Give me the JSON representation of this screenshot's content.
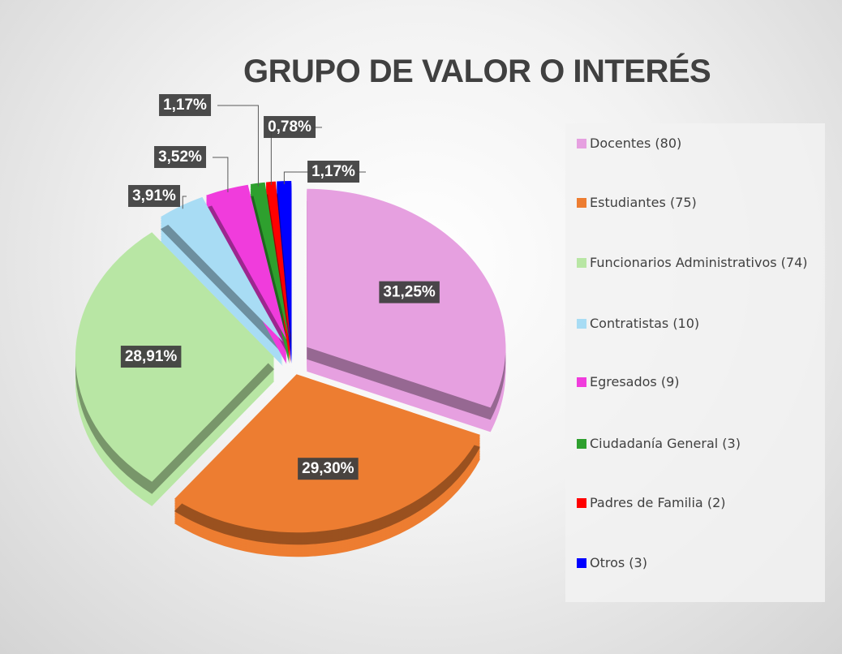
{
  "chart_data": {
    "type": "pie",
    "title": "GRUPO DE VALOR O INTERÉS",
    "categories": [
      "Docentes (80)",
      "Estudiantes (75)",
      "Funcionarios Administrativos (74)",
      "Contratistas (10)",
      "Egresados (9)",
      "Ciudadanía General (3)",
      "Padres de Familia (2)",
      "Otros (3)"
    ],
    "values": [
      31.25,
      29.3,
      28.91,
      3.91,
      3.52,
      1.17,
      0.78,
      1.17
    ],
    "value_labels": [
      "31,25%",
      "29,30%",
      "28,91%",
      "3,91%",
      "3,52%",
      "1,17%",
      "0,78%",
      "1,17%"
    ],
    "colors": [
      "#e6a0e0",
      "#ed7d31",
      "#b8e6a4",
      "#a8dcf4",
      "#f03cdc",
      "#2ea02e",
      "#ff0000",
      "#0000ff"
    ],
    "legend": "right"
  }
}
